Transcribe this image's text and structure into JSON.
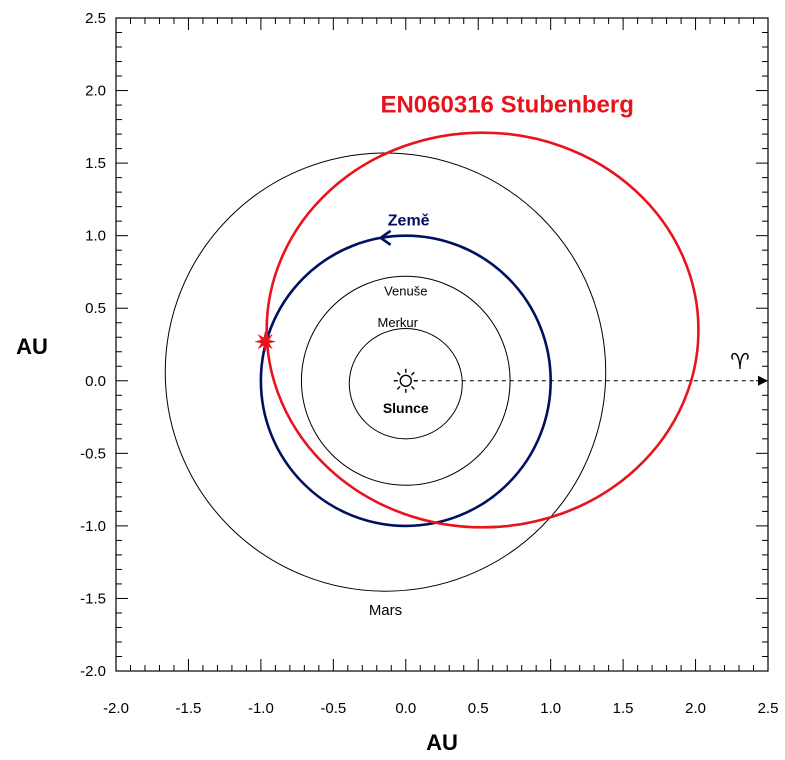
{
  "chart_data": {
    "type": "scatter",
    "xlabel": "AU",
    "ylabel": "AU",
    "xlim": [
      -2.0,
      2.5
    ],
    "ylim": [
      -2.0,
      2.5
    ],
    "x_ticks": [
      "-2.0",
      "-1.5",
      "-1.0",
      "-0.5",
      "0.0",
      "0.5",
      "1.0",
      "1.5",
      "2.0",
      "2.5"
    ],
    "y_ticks": [
      "2.5",
      "2.0",
      "1.5",
      "1.0",
      "0.5",
      "0.0",
      "-0.5",
      "-1.0",
      "-1.5",
      "-2.0"
    ],
    "grid": false,
    "sun": {
      "label": "Slunce",
      "x": 0.0,
      "y": 0.0
    },
    "orbits": [
      {
        "label": "Merkur",
        "cx": 0.0,
        "cy": -0.02,
        "rx": 0.39,
        "ry": 0.38,
        "color": "#000000"
      },
      {
        "label": "Venuše",
        "cx": 0.0,
        "cy": 0.0,
        "rx": 0.72,
        "ry": 0.72,
        "color": "#000000"
      },
      {
        "label": "Země",
        "cx": 0.0,
        "cy": 0.0,
        "rx": 1.0,
        "ry": 1.0,
        "color": "#001060"
      },
      {
        "label": "Mars",
        "cx": -0.14,
        "cy": 0.06,
        "rx": 1.52,
        "ry": 1.51,
        "color": "#000000"
      },
      {
        "label": "EN060316 Stubenberg",
        "cx": 0.53,
        "cy": 0.35,
        "rx": 1.49,
        "ry": 1.36,
        "color": "#e8141c"
      }
    ],
    "impact_point": {
      "x": -0.97,
      "y": 0.27,
      "color": "#e8141c"
    },
    "vernal_equinox": {
      "symbol": "♈",
      "x_from": 0.0,
      "x_to": 2.5,
      "y": 0.0
    }
  }
}
